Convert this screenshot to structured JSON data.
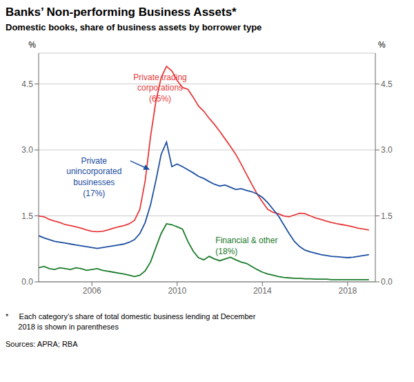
{
  "chart_data": {
    "type": "line",
    "title": "Banks’ Non-performing Business Assets*",
    "subtitle": "Domestic books, share of business assets by borrower type",
    "ylabel": "%",
    "y2label": "%",
    "footnote": "*     Each category’s share of total domestic business lending at December\n      2018 is shown in parentheses",
    "sources": "Sources: APRA; RBA",
    "x": [
      2003.5,
      2003.75,
      2004.0,
      2004.25,
      2004.5,
      2004.75,
      2005.0,
      2005.25,
      2005.5,
      2005.75,
      2006.0,
      2006.25,
      2006.5,
      2006.75,
      2007.0,
      2007.25,
      2007.5,
      2007.75,
      2008.0,
      2008.25,
      2008.5,
      2008.75,
      2009.0,
      2009.25,
      2009.5,
      2009.75,
      2010.0,
      2010.25,
      2010.5,
      2010.75,
      2011.0,
      2011.25,
      2011.5,
      2011.75,
      2012.0,
      2012.25,
      2012.5,
      2012.75,
      2013.0,
      2013.25,
      2013.5,
      2013.75,
      2014.0,
      2014.25,
      2014.5,
      2014.75,
      2015.0,
      2015.25,
      2015.5,
      2015.75,
      2016.0,
      2016.25,
      2016.5,
      2016.75,
      2017.0,
      2017.25,
      2017.5,
      2017.75,
      2018.0,
      2018.25,
      2018.5,
      2018.75,
      2019.0
    ],
    "xlim": [
      2003.5,
      2019.3
    ],
    "xticks": [
      2006,
      2010,
      2014,
      2018
    ],
    "ylim": [
      0.0,
      5.2
    ],
    "yticks": [
      {
        "value": 0.0,
        "label": "0.0"
      },
      {
        "value": 1.5,
        "label": "1.5"
      },
      {
        "value": 3.0,
        "label": "3.0"
      },
      {
        "value": 4.5,
        "label": "4.5"
      }
    ],
    "y2lim": [
      0.0,
      5.2
    ],
    "y2ticks": [
      {
        "value": 0.0,
        "label": "0.0"
      },
      {
        "value": 1.5,
        "label": "1.5"
      },
      {
        "value": 3.0,
        "label": "3.0"
      },
      {
        "value": 4.5,
        "label": "4.5"
      }
    ],
    "grid": true,
    "series": [
      {
        "color": "#e8393a",
        "values": [
          1.5,
          1.48,
          1.42,
          1.38,
          1.35,
          1.3,
          1.28,
          1.25,
          1.22,
          1.18,
          1.15,
          1.14,
          1.15,
          1.18,
          1.22,
          1.25,
          1.28,
          1.32,
          1.4,
          1.65,
          2.3,
          3.3,
          4.1,
          4.65,
          4.9,
          4.8,
          4.58,
          4.42,
          4.38,
          4.2,
          4.0,
          3.88,
          3.72,
          3.58,
          3.42,
          3.25,
          3.08,
          2.9,
          2.68,
          2.45,
          2.22,
          2.0,
          1.82,
          1.65,
          1.58,
          1.55,
          1.5,
          1.48,
          1.52,
          1.56,
          1.55,
          1.5,
          1.45,
          1.42,
          1.38,
          1.35,
          1.32,
          1.3,
          1.28,
          1.25,
          1.22,
          1.2,
          1.18
        ]
      },
      {
        "color": "#1c4ea0",
        "values": [
          1.05,
          1.0,
          0.96,
          0.92,
          0.9,
          0.88,
          0.86,
          0.84,
          0.82,
          0.8,
          0.78,
          0.76,
          0.78,
          0.8,
          0.82,
          0.84,
          0.86,
          0.9,
          0.96,
          1.1,
          1.35,
          1.75,
          2.3,
          2.9,
          3.18,
          2.62,
          2.68,
          2.62,
          2.55,
          2.48,
          2.4,
          2.35,
          2.28,
          2.22,
          2.18,
          2.2,
          2.15,
          2.1,
          2.12,
          2.08,
          2.05,
          2.0,
          1.92,
          1.8,
          1.65,
          1.5,
          1.3,
          1.1,
          0.92,
          0.8,
          0.72,
          0.68,
          0.65,
          0.62,
          0.6,
          0.58,
          0.57,
          0.56,
          0.55,
          0.56,
          0.58,
          0.6,
          0.62
        ]
      },
      {
        "color": "#1a7a2a",
        "values": [
          0.32,
          0.35,
          0.3,
          0.28,
          0.32,
          0.3,
          0.28,
          0.32,
          0.3,
          0.26,
          0.28,
          0.3,
          0.26,
          0.24,
          0.22,
          0.2,
          0.18,
          0.15,
          0.12,
          0.15,
          0.25,
          0.45,
          0.78,
          1.1,
          1.32,
          1.3,
          1.25,
          1.2,
          0.92,
          0.7,
          0.55,
          0.5,
          0.58,
          0.52,
          0.48,
          0.52,
          0.56,
          0.5,
          0.45,
          0.42,
          0.35,
          0.28,
          0.22,
          0.18,
          0.15,
          0.12,
          0.1,
          0.09,
          0.08,
          0.08,
          0.07,
          0.07,
          0.06,
          0.06,
          0.06,
          0.05,
          0.05,
          0.05,
          0.05,
          0.05,
          0.05,
          0.05,
          0.05
        ]
      }
    ],
    "annotations": [
      {
        "text": "Private trading\ncorporations\n(65%)",
        "x": 2009.2,
        "y": 4.75,
        "color": "#e8393a"
      },
      {
        "text": "Private\nunincorporated\nbusinesses\n(17%)",
        "x": 2006.1,
        "y": 2.85,
        "color": "#1c4ea0",
        "arrow": {
          "from": [
            2007.8,
            2.75
          ],
          "to": [
            2008.72,
            2.55
          ]
        }
      },
      {
        "text": "Financial & other\n(18%)",
        "x": 2011.8,
        "y": 0.58,
        "color": "#1a7a2a"
      }
    ]
  }
}
